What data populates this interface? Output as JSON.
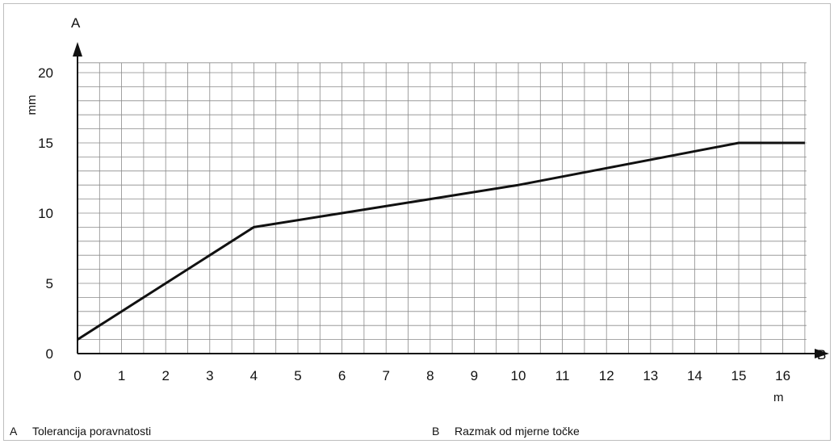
{
  "chart_data": {
    "type": "line",
    "x_axis_letter": "B",
    "y_axis_letter": "A",
    "x_unit": "m",
    "y_unit": "mm",
    "xlim": [
      0,
      16.5
    ],
    "ylim": [
      0,
      21
    ],
    "x_ticks": [
      0,
      1,
      2,
      3,
      4,
      5,
      6,
      7,
      8,
      9,
      10,
      11,
      12,
      13,
      14,
      15,
      16
    ],
    "y_ticks": [
      0,
      5,
      10,
      15,
      20
    ],
    "grid": true,
    "x_grid_step": 0.5,
    "y_grid_step": 1,
    "series": [
      {
        "x": [
          0,
          1.5,
          3,
          4,
          6,
          8,
          10,
          12,
          15,
          16.5
        ],
        "y": [
          1,
          4,
          7,
          9,
          10,
          11,
          12,
          13.2,
          15,
          15
        ]
      }
    ]
  },
  "legend": [
    {
      "key": "A",
      "text": "Tolerancija poravnatosti"
    },
    {
      "key": "B",
      "text": "Razmak od mjerne točke"
    }
  ]
}
